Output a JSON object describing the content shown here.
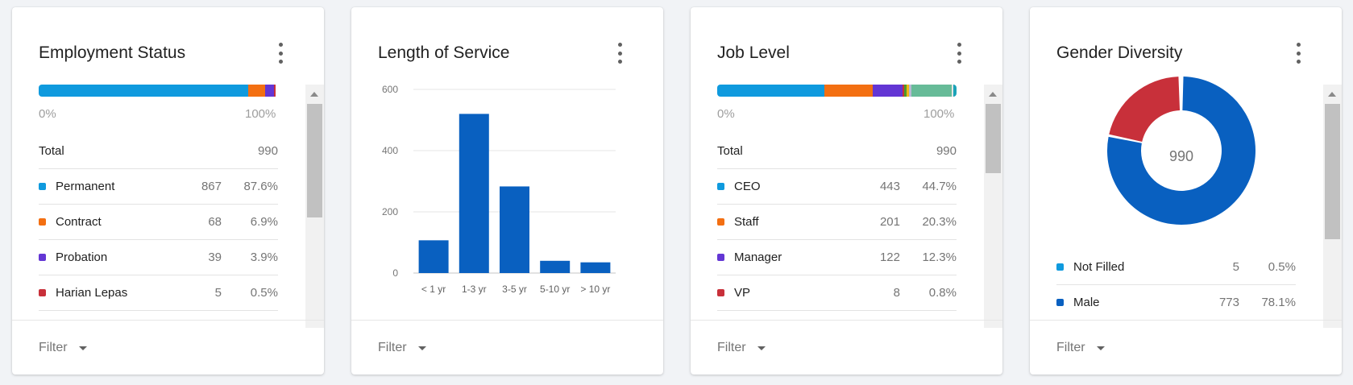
{
  "employment": {
    "title": "Employment Status",
    "scale_min": "0%",
    "scale_max": "100%",
    "total_label": "Total",
    "total_value": "990",
    "segments": [
      {
        "color": "#0f9ade",
        "share": 0.876
      },
      {
        "color": "#f36f12",
        "share": 0.069
      },
      {
        "color": "#6336d4",
        "share": 0.039
      },
      {
        "color": "#c8303a",
        "share": 0.005
      }
    ],
    "items": [
      {
        "label": "Permanent",
        "count": "867",
        "pct": "87.6%",
        "color": "#0f9ade"
      },
      {
        "label": "Contract",
        "count": "68",
        "pct": "6.9%",
        "color": "#f36f12"
      },
      {
        "label": "Probation",
        "count": "39",
        "pct": "3.9%",
        "color": "#6336d4"
      },
      {
        "label": "Harian Lepas",
        "count": "5",
        "pct": "0.5%",
        "color": "#c8303a"
      }
    ],
    "filter_label": "Filter"
  },
  "service": {
    "title": "Length of Service",
    "filter_label": "Filter"
  },
  "chart_data": {
    "type": "bar",
    "categories": [
      "< 1 yr",
      "1-3 yr",
      "3-5 yr",
      "5-10 yr",
      "> 10 yr"
    ],
    "values": [
      107,
      520,
      283,
      40,
      35
    ],
    "yticks": [
      0,
      200,
      400,
      600
    ],
    "ylim": [
      0,
      600
    ],
    "grid": true,
    "color": "#0960c0"
  },
  "job": {
    "title": "Job Level",
    "scale_min": "0%",
    "scale_max": "100%",
    "total_label": "Total",
    "total_value": "990",
    "segments": [
      {
        "color": "#0f9ade",
        "share": 0.447
      },
      {
        "color": "#f36f12",
        "share": 0.203
      },
      {
        "color": "#6336d4",
        "share": 0.123
      },
      {
        "color": "#c8303a",
        "share": 0.008
      },
      {
        "color": "#4c9a2a",
        "share": 0.01
      },
      {
        "color": "#f2b418",
        "share": 0.01
      },
      {
        "color": "#b8b8d4",
        "share": 0.01
      },
      {
        "color": "#67bb98",
        "share": 0.17
      },
      {
        "color": "#e6e6e6",
        "share": 0.007
      },
      {
        "color": "#1ba3b8",
        "share": 0.012
      }
    ],
    "items": [
      {
        "label": "CEO",
        "count": "443",
        "pct": "44.7%",
        "color": "#0f9ade"
      },
      {
        "label": "Staff",
        "count": "201",
        "pct": "20.3%",
        "color": "#f36f12"
      },
      {
        "label": "Manager",
        "count": "122",
        "pct": "12.3%",
        "color": "#6336d4"
      },
      {
        "label": "VP",
        "count": "8",
        "pct": "0.8%",
        "color": "#c8303a"
      }
    ],
    "filter_label": "Filter"
  },
  "gender": {
    "title": "Gender Diversity",
    "center_value": "990",
    "slices": [
      {
        "color": "#0960c0",
        "share": 0.781
      },
      {
        "color": "#c8303a",
        "share": 0.214
      },
      {
        "color": "#0f9ade",
        "share": 0.005
      }
    ],
    "items": [
      {
        "label": "Not Filled",
        "count": "5",
        "pct": "0.5%",
        "color": "#0f9ade"
      },
      {
        "label": "Male",
        "count": "773",
        "pct": "78.1%",
        "color": "#0960c0"
      }
    ],
    "filter_label": "Filter"
  }
}
